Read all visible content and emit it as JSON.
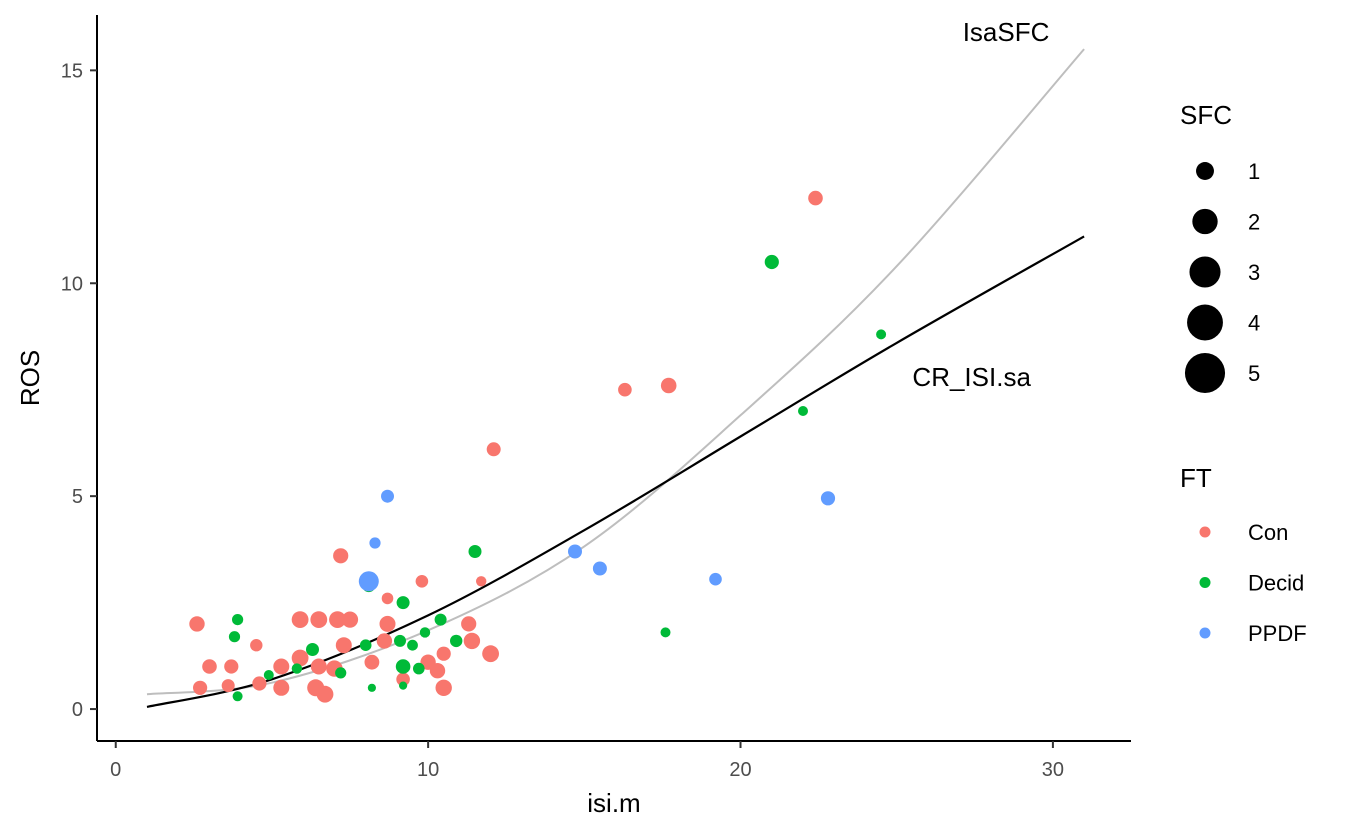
{
  "chart_data": {
    "type": "scatter",
    "xlabel": "isi.m",
    "ylabel": "ROS",
    "xlim": [
      -0.6,
      32.5
    ],
    "ylim": [
      -0.75,
      16.3
    ],
    "x_ticks": [
      0,
      10,
      20,
      30
    ],
    "y_ticks": [
      0,
      5,
      10,
      15
    ],
    "grid": false,
    "legend_position": "right",
    "colors": {
      "Con": "#F8766D",
      "Decid": "#00BA38",
      "PPDF": "#619CFF"
    },
    "legends": {
      "size": {
        "title": "SFC",
        "entries": [
          {
            "label": "1",
            "value": 1
          },
          {
            "label": "2",
            "value": 2
          },
          {
            "label": "3",
            "value": 3
          },
          {
            "label": "4",
            "value": 4
          },
          {
            "label": "5",
            "value": 5
          }
        ]
      },
      "color": {
        "title": "FT",
        "entries": [
          "Con",
          "Decid",
          "PPDF"
        ]
      }
    },
    "curves": [
      {
        "name": "IsaSFC",
        "color": "#bebebe",
        "x": [
          1,
          5,
          10,
          15,
          20,
          25,
          31
        ],
        "y": [
          0.35,
          0.62,
          1.85,
          3.82,
          6.9,
          10.4,
          15.5
        ]
      },
      {
        "name": "CR_ISI.sa",
        "color": "#000000",
        "x": [
          1,
          5,
          10,
          15,
          20,
          25,
          31
        ],
        "y": [
          0.05,
          0.7,
          2.2,
          4.2,
          6.4,
          8.6,
          11.1
        ]
      }
    ],
    "curve_labels": [
      {
        "text": "IsaSFC",
        "x": 28.5,
        "y": 15.9
      },
      {
        "text": "CR_ISI.sa",
        "x": 27.4,
        "y": 7.8
      }
    ],
    "points": [
      {
        "x": 22.4,
        "y": 12.0,
        "FT": "Con",
        "SFC": 2.5
      },
      {
        "x": 17.7,
        "y": 7.6,
        "FT": "Con",
        "SFC": 2.9
      },
      {
        "x": 16.3,
        "y": 7.5,
        "FT": "Con",
        "SFC": 2.2
      },
      {
        "x": 12.1,
        "y": 6.1,
        "FT": "Con",
        "SFC": 2.3
      },
      {
        "x": 7.2,
        "y": 3.6,
        "FT": "Con",
        "SFC": 2.7
      },
      {
        "x": 9.8,
        "y": 3.0,
        "FT": "Con",
        "SFC": 1.9
      },
      {
        "x": 11.7,
        "y": 3.0,
        "FT": "Con",
        "SFC": 1.3
      },
      {
        "x": 8.7,
        "y": 2.6,
        "FT": "Con",
        "SFC": 1.6
      },
      {
        "x": 2.6,
        "y": 2.0,
        "FT": "Con",
        "SFC": 2.8
      },
      {
        "x": 5.9,
        "y": 2.1,
        "FT": "Con",
        "SFC": 3.3
      },
      {
        "x": 6.5,
        "y": 2.1,
        "FT": "Con",
        "SFC": 3.3
      },
      {
        "x": 7.1,
        "y": 2.1,
        "FT": "Con",
        "SFC": 3.3
      },
      {
        "x": 7.5,
        "y": 2.1,
        "FT": "Con",
        "SFC": 3.1
      },
      {
        "x": 8.7,
        "y": 2.0,
        "FT": "Con",
        "SFC": 3.0
      },
      {
        "x": 11.3,
        "y": 2.0,
        "FT": "Con",
        "SFC": 2.7
      },
      {
        "x": 4.5,
        "y": 1.5,
        "FT": "Con",
        "SFC": 1.8
      },
      {
        "x": 7.3,
        "y": 1.5,
        "FT": "Con",
        "SFC": 3.0
      },
      {
        "x": 8.6,
        "y": 1.6,
        "FT": "Con",
        "SFC": 2.8
      },
      {
        "x": 11.4,
        "y": 1.6,
        "FT": "Con",
        "SFC": 3.2
      },
      {
        "x": 10.5,
        "y": 1.3,
        "FT": "Con",
        "SFC": 2.4
      },
      {
        "x": 12.0,
        "y": 1.3,
        "FT": "Con",
        "SFC": 3.3
      },
      {
        "x": 3.0,
        "y": 1.0,
        "FT": "Con",
        "SFC": 2.5
      },
      {
        "x": 3.7,
        "y": 1.0,
        "FT": "Con",
        "SFC": 2.4
      },
      {
        "x": 5.3,
        "y": 1.0,
        "FT": "Con",
        "SFC": 3.0
      },
      {
        "x": 5.9,
        "y": 1.2,
        "FT": "Con",
        "SFC": 3.3
      },
      {
        "x": 6.5,
        "y": 1.0,
        "FT": "Con",
        "SFC": 3.0
      },
      {
        "x": 7.0,
        "y": 0.95,
        "FT": "Con",
        "SFC": 3.2
      },
      {
        "x": 8.2,
        "y": 1.1,
        "FT": "Con",
        "SFC": 2.6
      },
      {
        "x": 10.0,
        "y": 1.1,
        "FT": "Con",
        "SFC": 2.8
      },
      {
        "x": 10.3,
        "y": 0.9,
        "FT": "Con",
        "SFC": 2.8
      },
      {
        "x": 2.7,
        "y": 0.5,
        "FT": "Con",
        "SFC": 2.4
      },
      {
        "x": 3.6,
        "y": 0.55,
        "FT": "Con",
        "SFC": 2.0
      },
      {
        "x": 4.6,
        "y": 0.6,
        "FT": "Con",
        "SFC": 2.4
      },
      {
        "x": 5.3,
        "y": 0.5,
        "FT": "Con",
        "SFC": 3.0
      },
      {
        "x": 6.4,
        "y": 0.5,
        "FT": "Con",
        "SFC": 3.4
      },
      {
        "x": 6.7,
        "y": 0.35,
        "FT": "Con",
        "SFC": 3.3
      },
      {
        "x": 9.2,
        "y": 0.7,
        "FT": "Con",
        "SFC": 2.2
      },
      {
        "x": 10.5,
        "y": 0.5,
        "FT": "Con",
        "SFC": 3.2
      },
      {
        "x": 21.0,
        "y": 10.5,
        "FT": "Decid",
        "SFC": 2.4
      },
      {
        "x": 24.5,
        "y": 8.8,
        "FT": "Decid",
        "SFC": 1.2
      },
      {
        "x": 22.0,
        "y": 7.0,
        "FT": "Decid",
        "SFC": 1.2
      },
      {
        "x": 11.5,
        "y": 3.7,
        "FT": "Decid",
        "SFC": 2.0
      },
      {
        "x": 8.1,
        "y": 2.9,
        "FT": "Decid",
        "SFC": 2.0
      },
      {
        "x": 9.2,
        "y": 2.5,
        "FT": "Decid",
        "SFC": 2.0
      },
      {
        "x": 3.9,
        "y": 2.1,
        "FT": "Decid",
        "SFC": 1.5
      },
      {
        "x": 10.4,
        "y": 2.1,
        "FT": "Decid",
        "SFC": 1.7
      },
      {
        "x": 3.8,
        "y": 1.7,
        "FT": "Decid",
        "SFC": 1.5
      },
      {
        "x": 9.9,
        "y": 1.8,
        "FT": "Decid",
        "SFC": 1.3
      },
      {
        "x": 17.6,
        "y": 1.8,
        "FT": "Decid",
        "SFC": 1.2
      },
      {
        "x": 8.0,
        "y": 1.5,
        "FT": "Decid",
        "SFC": 1.6
      },
      {
        "x": 9.1,
        "y": 1.6,
        "FT": "Decid",
        "SFC": 1.7
      },
      {
        "x": 9.5,
        "y": 1.5,
        "FT": "Decid",
        "SFC": 1.4
      },
      {
        "x": 10.9,
        "y": 1.6,
        "FT": "Decid",
        "SFC": 1.8
      },
      {
        "x": 6.3,
        "y": 1.4,
        "FT": "Decid",
        "SFC": 2.0
      },
      {
        "x": 9.2,
        "y": 1.0,
        "FT": "Decid",
        "SFC": 2.5
      },
      {
        "x": 9.7,
        "y": 0.95,
        "FT": "Decid",
        "SFC": 1.6
      },
      {
        "x": 5.8,
        "y": 0.95,
        "FT": "Decid",
        "SFC": 1.3
      },
      {
        "x": 7.2,
        "y": 0.85,
        "FT": "Decid",
        "SFC": 1.5
      },
      {
        "x": 4.9,
        "y": 0.8,
        "FT": "Decid",
        "SFC": 1.2
      },
      {
        "x": 8.2,
        "y": 0.5,
        "FT": "Decid",
        "SFC": 0.8
      },
      {
        "x": 9.2,
        "y": 0.55,
        "FT": "Decid",
        "SFC": 0.8
      },
      {
        "x": 3.9,
        "y": 0.3,
        "FT": "Decid",
        "SFC": 1.2
      },
      {
        "x": 8.1,
        "y": 3.0,
        "FT": "PPDF",
        "SFC": 4.7
      },
      {
        "x": 8.7,
        "y": 5.0,
        "FT": "PPDF",
        "SFC": 2.0
      },
      {
        "x": 8.3,
        "y": 3.9,
        "FT": "PPDF",
        "SFC": 1.5
      },
      {
        "x": 22.8,
        "y": 4.95,
        "FT": "PPDF",
        "SFC": 2.4
      },
      {
        "x": 14.7,
        "y": 3.7,
        "FT": "PPDF",
        "SFC": 2.3
      },
      {
        "x": 15.5,
        "y": 3.3,
        "FT": "PPDF",
        "SFC": 2.3
      },
      {
        "x": 19.2,
        "y": 3.05,
        "FT": "PPDF",
        "SFC": 1.9
      }
    ]
  }
}
